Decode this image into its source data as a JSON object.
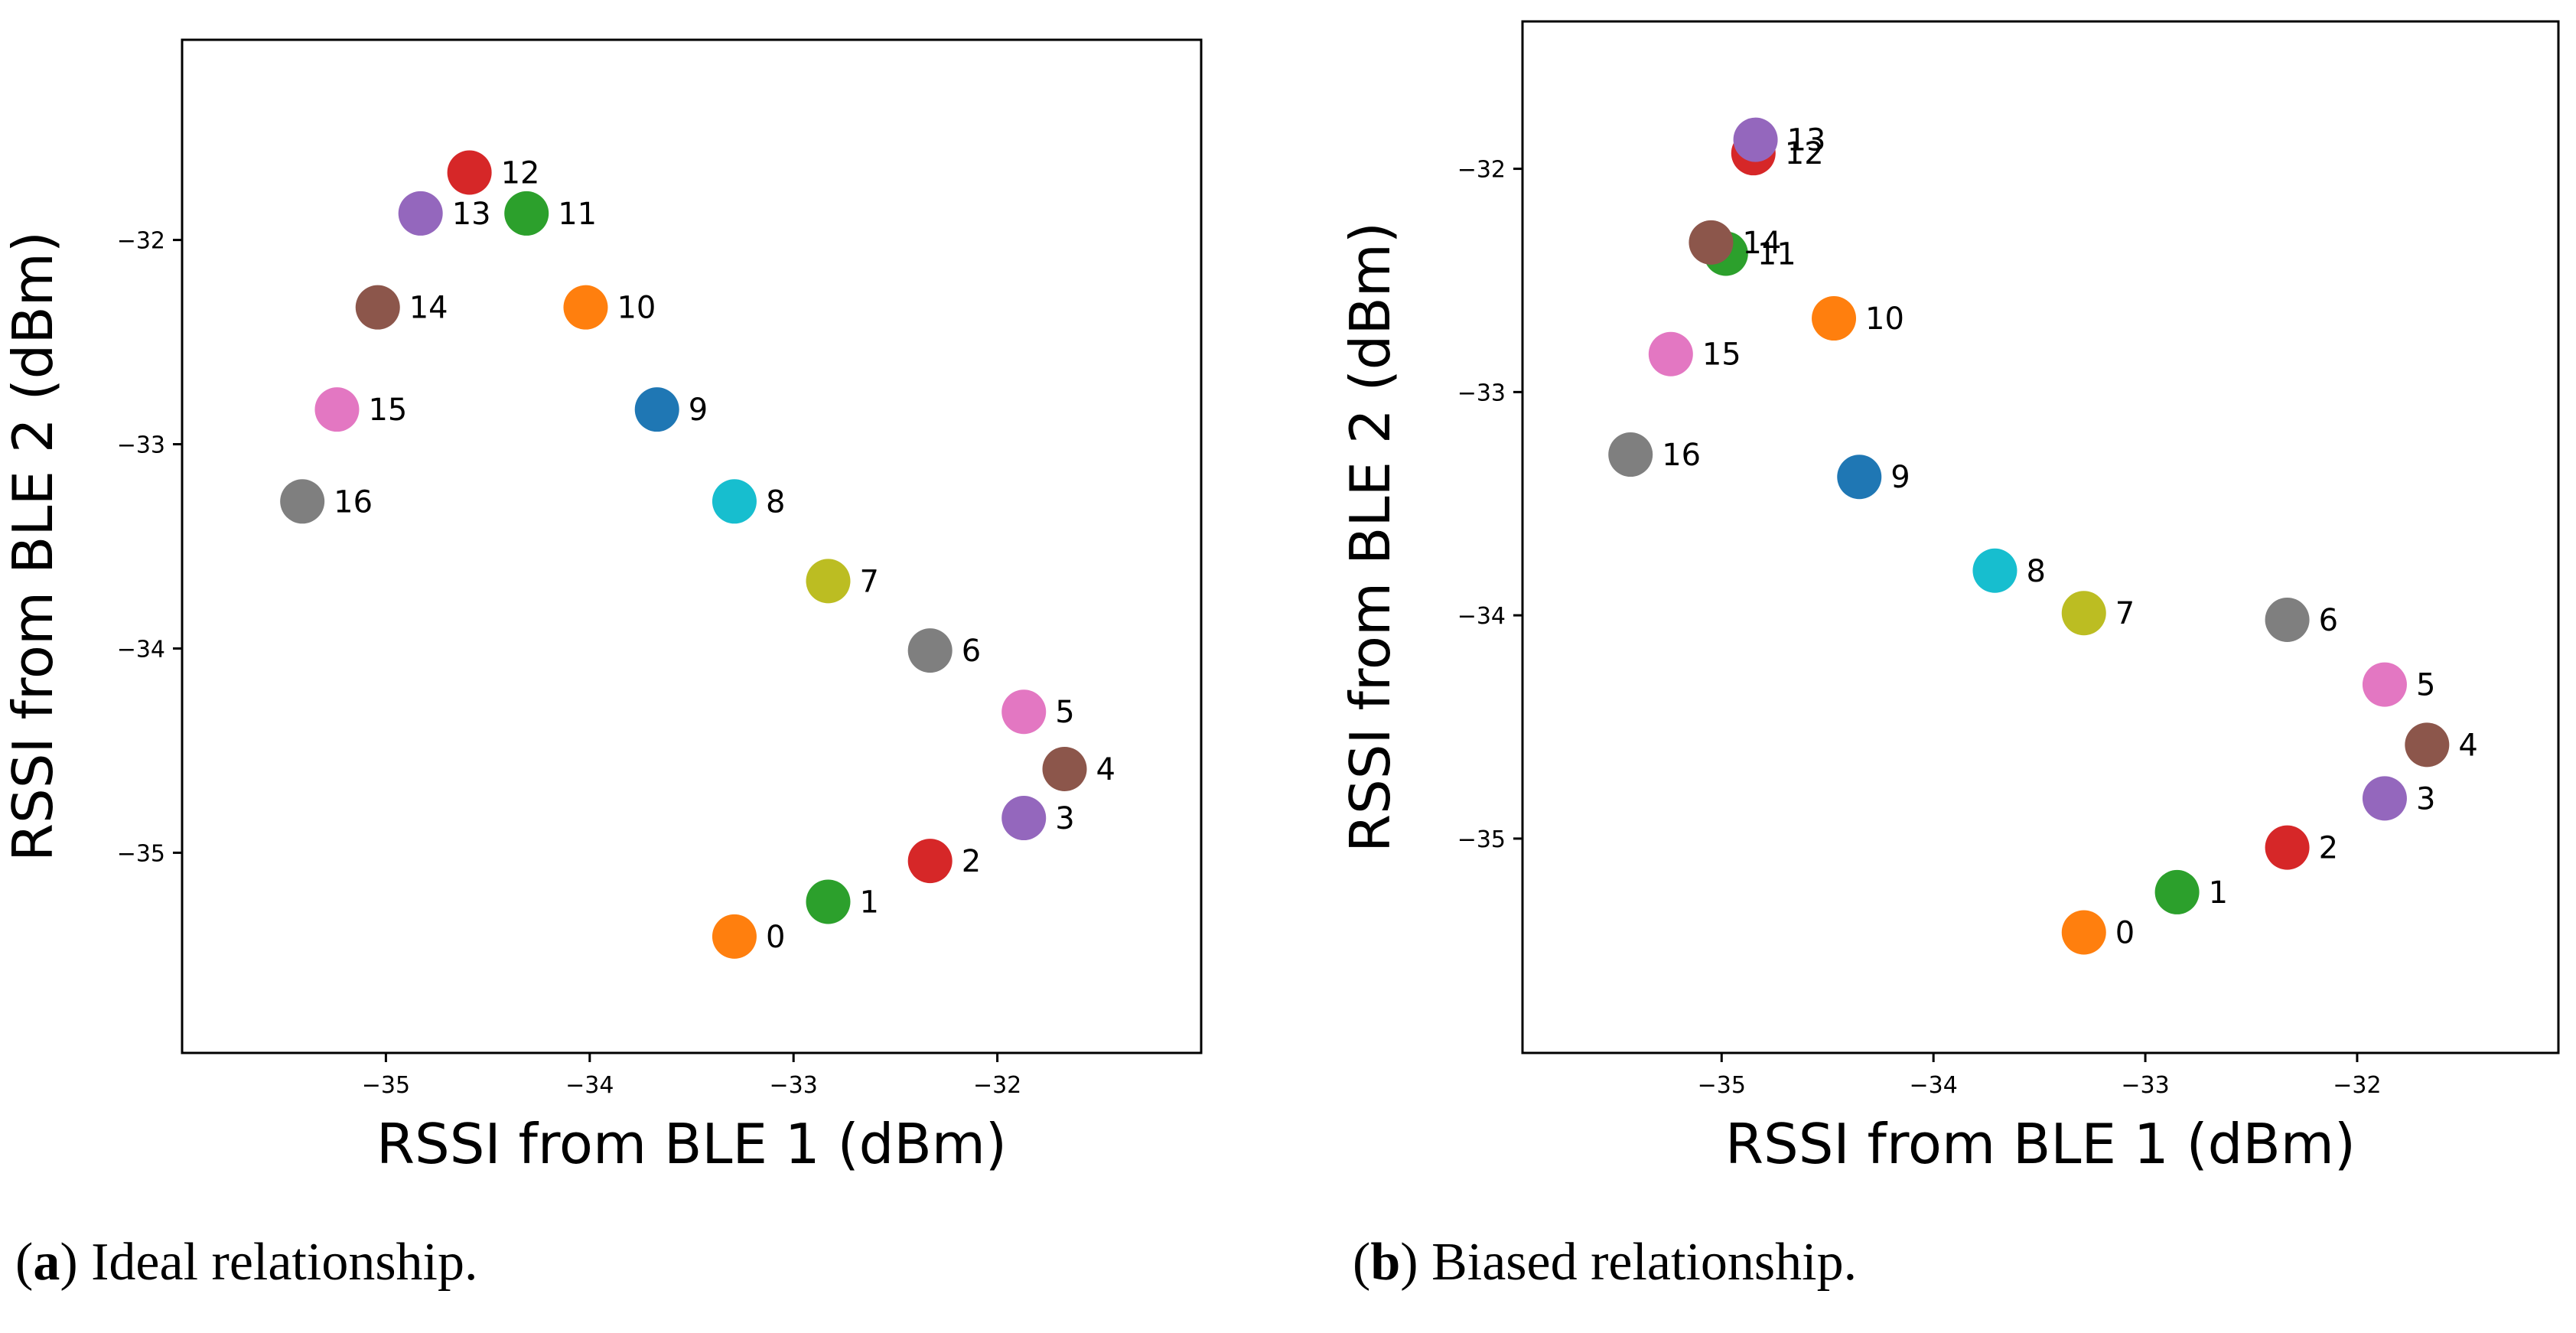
{
  "colors": [
    "#ff7f0e",
    "#2ca02c",
    "#d62728",
    "#9467bd",
    "#8c564b",
    "#e377c2",
    "#7f7f7f",
    "#bcbd22",
    "#17becf",
    "#1f77b4",
    "#ff7f0e",
    "#2ca02c",
    "#d62728",
    "#9467bd",
    "#8c564b",
    "#e377c2",
    "#7f7f7f"
  ],
  "chart_data": [
    {
      "type": "scatter",
      "title": "",
      "xlabel": "RSSI from BLE 1 (dBm)",
      "ylabel": "RSSI from BLE 2 (dBm)",
      "xlim": [
        -36.0,
        -31.0
      ],
      "ylim": [
        -35.98,
        -31.02
      ],
      "xticks": [
        -35,
        -34,
        -33,
        -32
      ],
      "xtick_labels": [
        "−35",
        "−34",
        "−33",
        "−32"
      ],
      "yticks": [
        -32,
        -33,
        -34,
        -35
      ],
      "ytick_labels": [
        "−32",
        "−33",
        "−34",
        "−35"
      ],
      "grid": false,
      "points": [
        {
          "label": "0",
          "x": -33.29,
          "y": -35.41
        },
        {
          "label": "1",
          "x": -32.83,
          "y": -35.24
        },
        {
          "label": "2",
          "x": -32.33,
          "y": -35.04
        },
        {
          "label": "3",
          "x": -31.87,
          "y": -34.83
        },
        {
          "label": "4",
          "x": -31.67,
          "y": -34.59
        },
        {
          "label": "5",
          "x": -31.87,
          "y": -34.31
        },
        {
          "label": "6",
          "x": -32.33,
          "y": -34.01
        },
        {
          "label": "7",
          "x": -32.83,
          "y": -33.67
        },
        {
          "label": "8",
          "x": -33.29,
          "y": -33.28
        },
        {
          "label": "9",
          "x": -33.67,
          "y": -32.83
        },
        {
          "label": "10",
          "x": -34.02,
          "y": -32.33
        },
        {
          "label": "11",
          "x": -34.31,
          "y": -31.87
        },
        {
          "label": "12",
          "x": -34.59,
          "y": -31.67
        },
        {
          "label": "13",
          "x": -34.83,
          "y": -31.87
        },
        {
          "label": "14",
          "x": -35.04,
          "y": -32.33
        },
        {
          "label": "15",
          "x": -35.24,
          "y": -32.83
        },
        {
          "label": "16",
          "x": -35.41,
          "y": -33.28
        }
      ]
    },
    {
      "type": "scatter",
      "title": "",
      "xlabel": "RSSI from BLE 1 (dBm)",
      "ylabel": "RSSI from BLE 2 (dBm)",
      "xlim": [
        -35.94,
        -31.05
      ],
      "ylim": [
        -35.96,
        -31.34
      ],
      "xticks": [
        -35,
        -34,
        -33,
        -32
      ],
      "xtick_labels": [
        "−35",
        "−34",
        "−33",
        "−32"
      ],
      "yticks": [
        -32,
        -33,
        -34,
        -35
      ],
      "ytick_labels": [
        "−32",
        "−33",
        "−34",
        "−35"
      ],
      "grid": false,
      "points": [
        {
          "label": "0",
          "x": -33.29,
          "y": -35.42
        },
        {
          "label": "1",
          "x": -32.85,
          "y": -35.24
        },
        {
          "label": "2",
          "x": -32.33,
          "y": -35.04
        },
        {
          "label": "3",
          "x": -31.87,
          "y": -34.82
        },
        {
          "label": "4",
          "x": -31.67,
          "y": -34.58
        },
        {
          "label": "5",
          "x": -31.87,
          "y": -34.31
        },
        {
          "label": "6",
          "x": -32.33,
          "y": -34.02
        },
        {
          "label": "7",
          "x": -33.29,
          "y": -33.99
        },
        {
          "label": "8",
          "x": -33.71,
          "y": -33.8
        },
        {
          "label": "9",
          "x": -34.35,
          "y": -33.38
        },
        {
          "label": "10",
          "x": -34.47,
          "y": -32.67
        },
        {
          "label": "11",
          "x": -34.98,
          "y": -32.38
        },
        {
          "label": "12",
          "x": -34.85,
          "y": -31.93
        },
        {
          "label": "13",
          "x": -34.84,
          "y": -31.87
        },
        {
          "label": "14",
          "x": -35.05,
          "y": -32.33
        },
        {
          "label": "15",
          "x": -35.24,
          "y": -32.83
        },
        {
          "label": "16",
          "x": -35.43,
          "y": -33.28
        }
      ]
    }
  ],
  "captions": [
    {
      "letter": "a",
      "text": " Ideal relationship."
    },
    {
      "letter": "b",
      "text": " Biased relationship."
    }
  ]
}
